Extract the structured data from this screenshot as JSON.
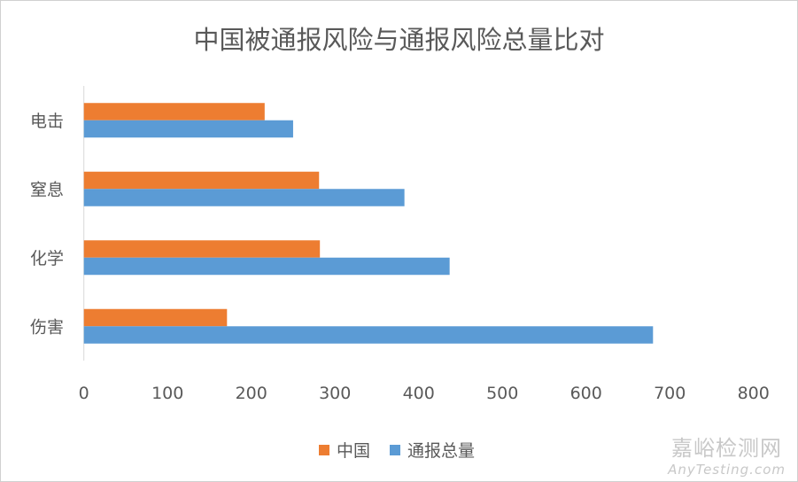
{
  "chart_data": {
    "type": "bar",
    "orientation": "horizontal",
    "title": "中国被通报风险与通报风险总量比对",
    "categories": [
      "电击",
      "窒息",
      "化学",
      "伤害"
    ],
    "series": [
      {
        "name": "中国",
        "color": "#ED7D31",
        "values": [
          216,
          281,
          282,
          171
        ]
      },
      {
        "name": "通报总量",
        "color": "#5B9BD5",
        "values": [
          250,
          383,
          437,
          680
        ]
      }
    ],
    "xlim": [
      0,
      800
    ],
    "xticks": [
      "0",
      "100",
      "200",
      "300",
      "400",
      "500",
      "600",
      "700",
      "800"
    ],
    "xlabel": "",
    "ylabel": "",
    "grid": false,
    "legend_position": "bottom"
  },
  "watermark": {
    "line1": "嘉峪检测网",
    "line2": "AnyTesting.com"
  }
}
